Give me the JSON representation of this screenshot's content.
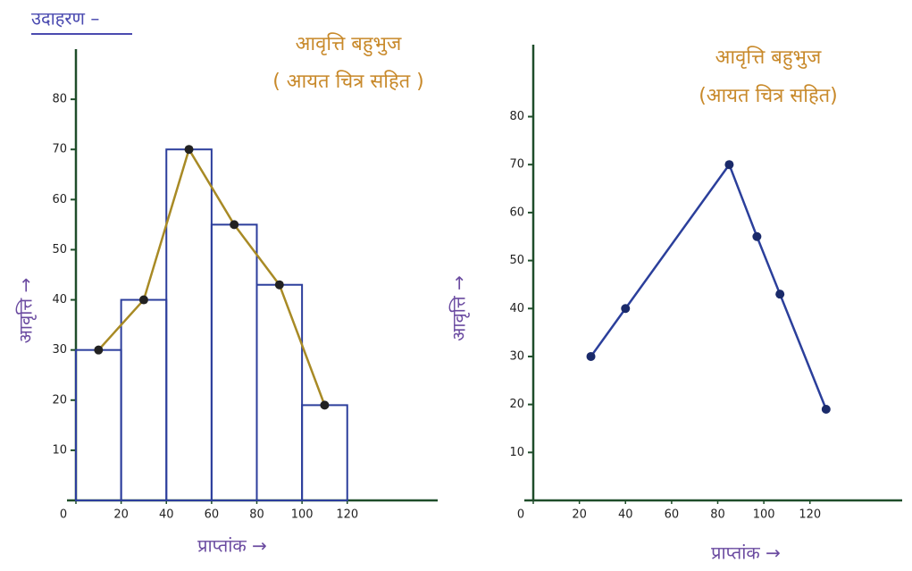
{
  "header": {
    "title": "उदाहरण –"
  },
  "chart_data": [
    {
      "type": "histogram",
      "title": "आवृत्ति बहुभुज",
      "subtitle": "( आयत चित्र सहित )",
      "x_label": "प्राप्तांक →",
      "y_label": "आवृत्ति →",
      "bins": [
        0,
        20,
        40,
        60,
        80,
        100,
        120
      ],
      "values": [
        30,
        40,
        70,
        55,
        43,
        19
      ],
      "color": "#2c3e9c",
      "polygon": {
        "x": [
          10,
          30,
          50,
          70,
          90,
          110
        ],
        "values": [
          30,
          40,
          70,
          55,
          43,
          19
        ],
        "color": "#a88a25"
      },
      "xlim": [
        0,
        160
      ],
      "ylim": [
        0,
        90
      ],
      "xticks": [
        0,
        20,
        40,
        60,
        80,
        100,
        120
      ],
      "yticks": [
        10,
        20,
        30,
        40,
        50,
        60,
        70,
        80
      ]
    },
    {
      "type": "line",
      "title": "आवृत्ति बहुभुज",
      "subtitle": "(आयत चित्र सहित)",
      "x_label": "प्राप्तांक →",
      "y_label": "आवृत्ति →",
      "x": [
        25,
        40,
        85,
        97,
        107,
        127
      ],
      "values": [
        30,
        40,
        70,
        55,
        43,
        19
      ],
      "color": "#2b3f9b",
      "xlim": [
        0,
        160
      ],
      "ylim": [
        0,
        95
      ],
      "xticks": [
        0,
        20,
        40,
        60,
        80,
        100,
        120
      ],
      "yticks": [
        10,
        20,
        30,
        40,
        50,
        60,
        70,
        80
      ]
    }
  ]
}
